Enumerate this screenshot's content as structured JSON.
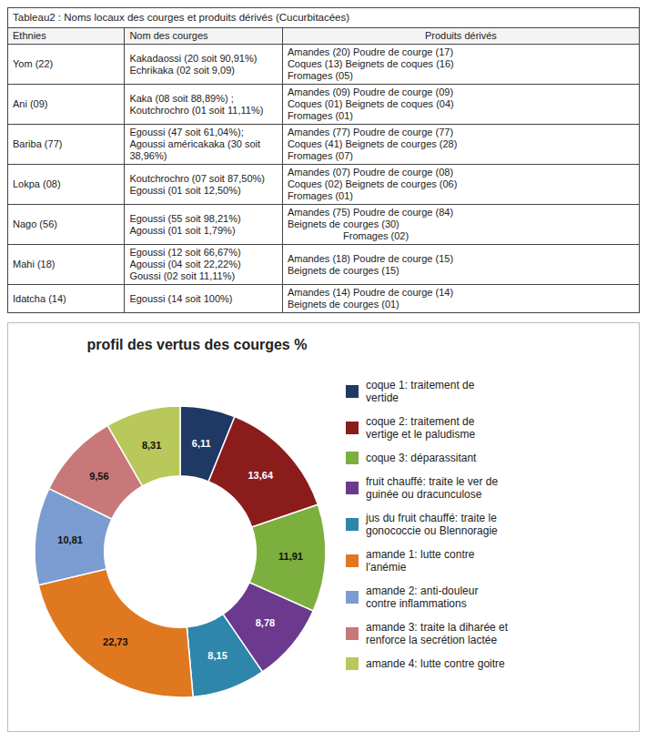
{
  "chart_data": [
    {
      "type": "table",
      "title": "Tableau2 : Noms locaux des courges et produits dérivés (Cucurbitacées)",
      "columns": [
        "Ethnies",
        "Nom des courges",
        "Produits dérivés"
      ],
      "rows": [
        [
          "Yom (22)",
          "Kakadaossi (20 soit 90,91%)\nEchrikaka (02 soit 9,09)",
          "Amandes (20) Poudre de courge (17)\nCoques (13) Beignets de coques (16)\nFromages (05)"
        ],
        [
          "Ani (09)",
          "Kaka (08 soit 88,89%) ;\nKoutchrochro (01 soit 11,11%)",
          "Amandes (09) Poudre de courge (09)\nCoques (01) Beignets de coques (04)\nFromages (01)"
        ],
        [
          "Bariba (77)",
          "Egoussi (47 soit 61,04%);\nAgoussi américakaka (30 soit\n38,96%)",
          "Amandes (77) Poudre de courge (77)\nCoques (41) Beignets de courges (28)\nFromages (07)"
        ],
        [
          "Lokpa (08)",
          "Koutchrochro (07 soit 87,50%)\nEgoussi (01 soit 12,50%)",
          "Amandes (07) Poudre de courge (08)\nCoques (02) Beignets de courges (06)\nFromages (01)"
        ],
        [
          "Nago (56)",
          "Egoussi (55 soit 98,21%)\nAgoussi (01 soit 1,79%)",
          "Amandes (75) Poudre de courge (84)\nBeignets de courges (30)\n                    Fromages (02)"
        ],
        [
          "Mahi (18)",
          "Egoussi (12 soit 66,67%)\nAgoussi (04 soit 22,22%)\nGoussi (02 soit 11,11%)",
          "Amandes (18) Poudre de courge (15)\nBeignets de courges (15)"
        ],
        [
          "Idatcha (14)",
          "Egoussi (14 soit 100%)",
          "Amandes (14) Poudre de courge (14)\nBeignets de courges (01)"
        ]
      ]
    },
    {
      "type": "pie",
      "title": "profil des vertus des courges  %",
      "categories": [
        "coque 1: traitement de\nvertide",
        "coque 2: traitement de\nvertige et le paludisme",
        "coque 3: déparassitant",
        "fruit chauffé: traite le ver de\nguinée ou dracunculose",
        "jus du fruit chauffé: traite le\ngonococcie ou Blennoragie",
        "amande 1: lutte contre\nl'anémie",
        "amande 2: anti-douleur\ncontre inflammations",
        "amande 3: traite la diharée et\nrenforce la secrétion lactée",
        "amande 4: lutte contre goitre"
      ],
      "values": [
        6.11,
        13.64,
        11.91,
        8.78,
        8.15,
        22.73,
        10.81,
        9.56,
        8.31
      ],
      "value_labels": [
        "6,11",
        "13,64",
        "11,91",
        "8,78",
        "8,15",
        "22,73",
        "10,81",
        "9,56",
        "8,31"
      ],
      "colors": [
        "#1F3864",
        "#8B1C1C",
        "#7CAF3E",
        "#6B3A8E",
        "#2E86AB",
        "#E07820",
        "#7B9CD0",
        "#C87878",
        "#B8C85A"
      ],
      "data_labels": true,
      "legend": "right"
    }
  ]
}
